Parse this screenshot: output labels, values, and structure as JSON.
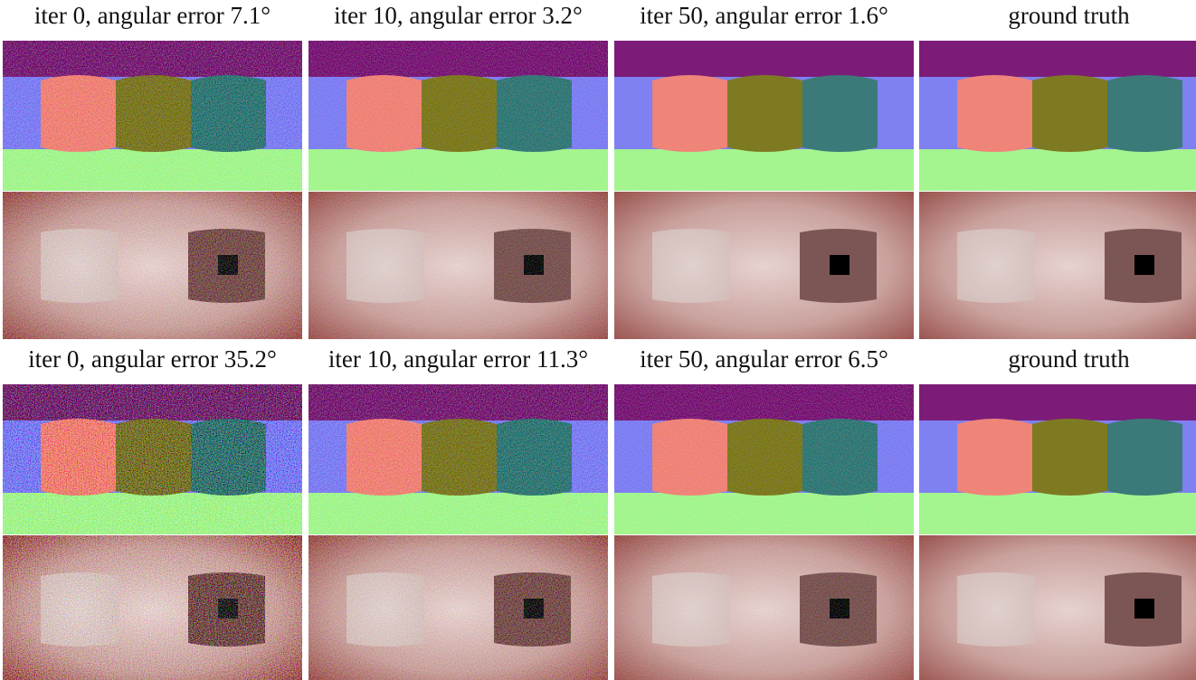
{
  "figure": {
    "rows": [
      {
        "captions": [
          "iter 0, angular error 7.1°",
          "iter 10, angular error 3.2°",
          "iter 50, angular error 1.6°",
          "ground truth"
        ]
      },
      {
        "captions": [
          "iter 0, angular error 35.2°",
          "iter 10, angular error 11.3°",
          "iter 50, angular error 6.5°",
          "ground truth"
        ]
      }
    ]
  }
}
